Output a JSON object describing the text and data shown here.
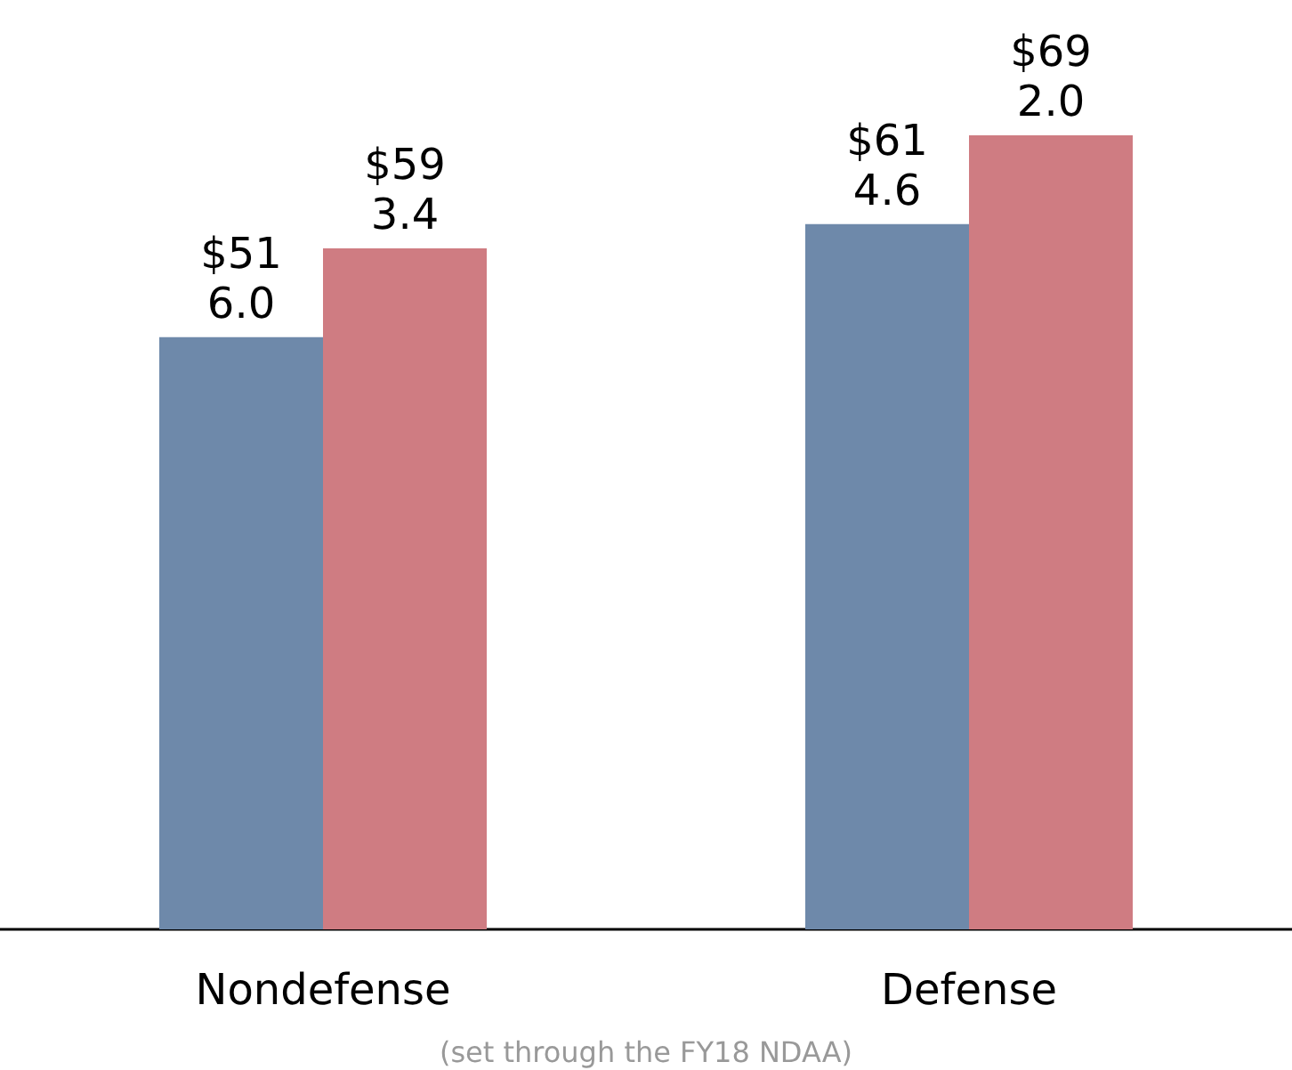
{
  "chart_data": {
    "type": "bar",
    "categories": [
      "Nondefense",
      "Defense"
    ],
    "series": [
      {
        "color": "#6e89aa",
        "values": [
          516.0,
          614.6
        ],
        "value_labels": [
          "$516.0",
          "$614.6"
        ]
      },
      {
        "color": "#cf7c82",
        "values": [
          593.4,
          692.0
        ],
        "value_labels": [
          "$593.4",
          "$692.0"
        ]
      }
    ],
    "tick_labels": "x",
    "grid": false,
    "annotations": [
      "(set through the FY18 NDAA)"
    ]
  }
}
